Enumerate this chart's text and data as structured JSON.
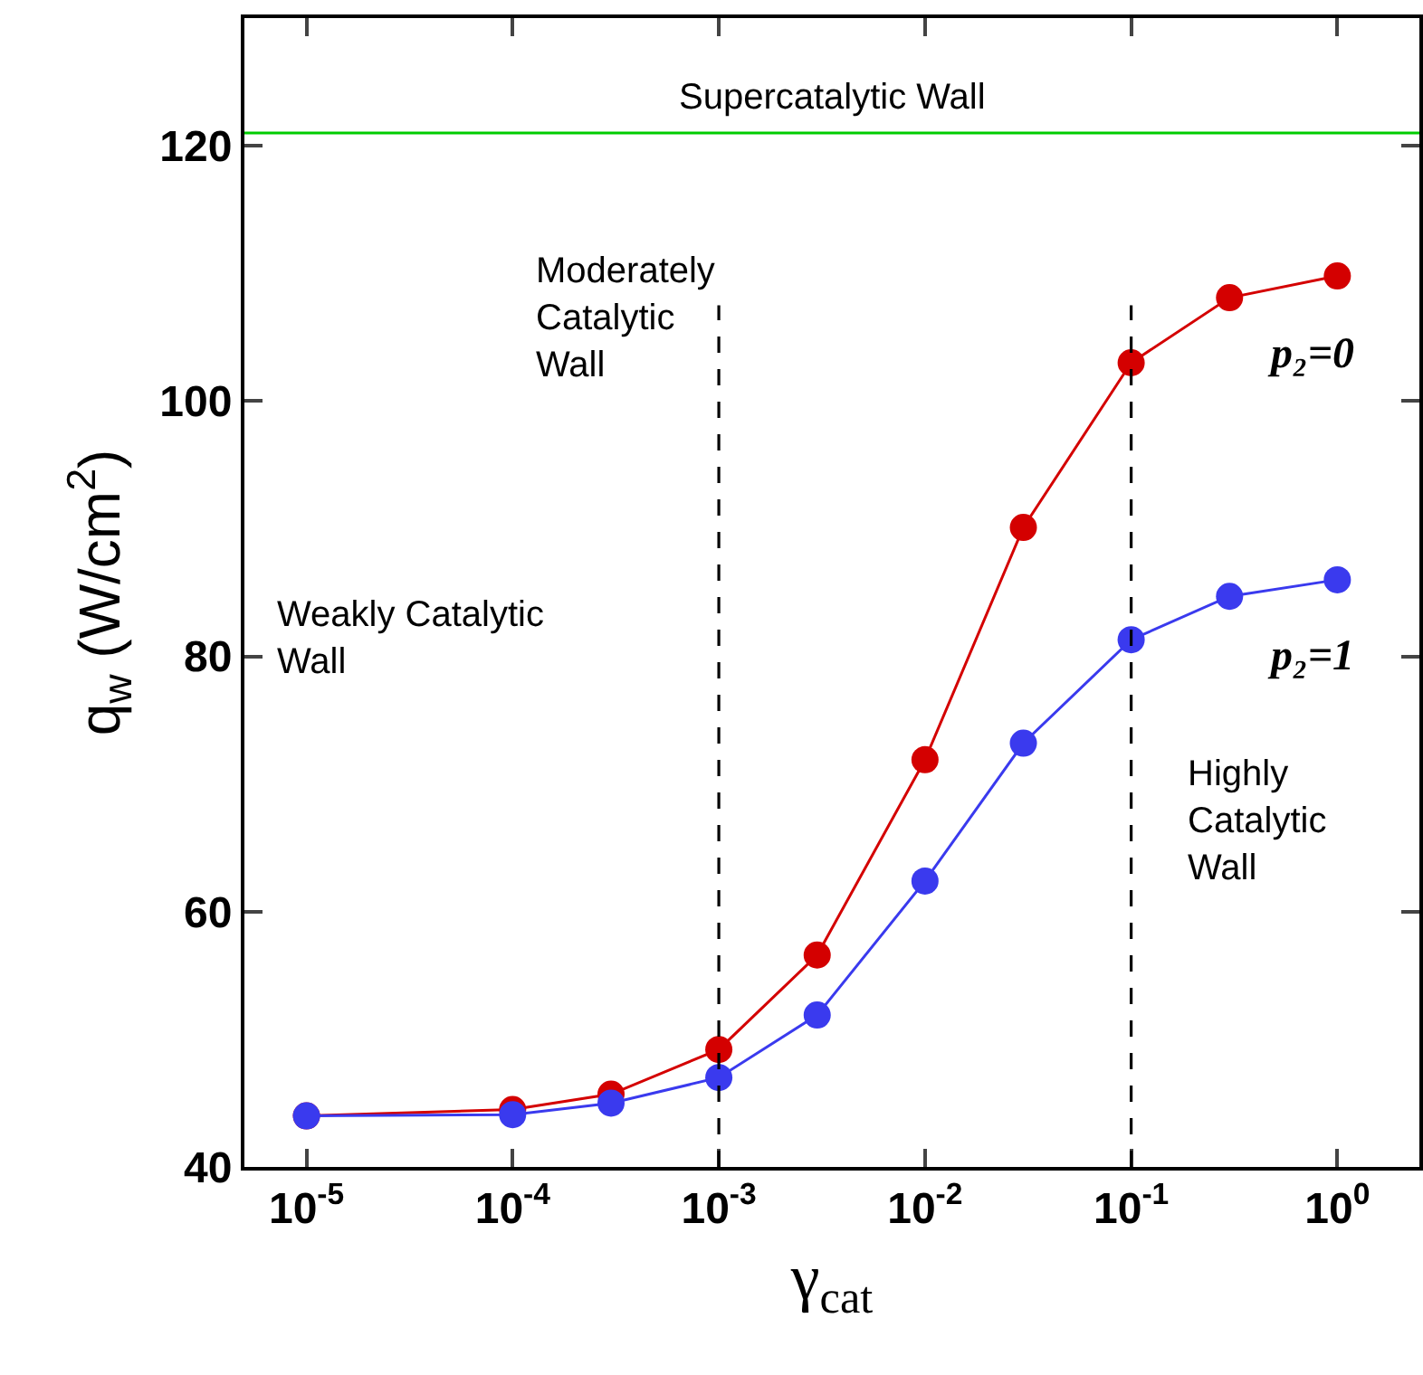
{
  "chart_data": {
    "type": "line",
    "xlabel": "γ$_{cat}$",
    "ylabel": "q$_{w}$ (W/cm$^{2}$)",
    "x": [
      1e-05,
      0.0001,
      0.0003,
      0.001,
      0.003,
      0.01,
      0.03,
      0.1,
      0.3,
      1
    ],
    "series": [
      {
        "name": "p₂=0",
        "color": "#d40000",
        "values": [
          44.0,
          44.5,
          45.7,
          49.2,
          56.6,
          71.9,
          90.1,
          103,
          108.1,
          109.8
        ]
      },
      {
        "name": "p₂=1",
        "color": "#3a3aee",
        "values": [
          44.0,
          44.1,
          45.0,
          47.0,
          51.9,
          62.4,
          73.2,
          81.3,
          84.7,
          86.0
        ]
      }
    ],
    "log": "x",
    "xlim": [
      5e-06,
      2.5
    ],
    "ylim": [
      40,
      130
    ],
    "xticks": [
      {
        "value": 1e-05,
        "label": "10$^{-5}$"
      },
      {
        "value": 0.0001,
        "label": "10$^{-4}$"
      },
      {
        "value": 0.001,
        "label": "10$^{-3}$"
      },
      {
        "value": 0.01,
        "label": "10$^{-2}$"
      },
      {
        "value": 0.1,
        "label": "10$^{-1}$"
      },
      {
        "value": 1,
        "label": "10$^{0}$"
      }
    ],
    "yticks": [
      40,
      60,
      80,
      100,
      120
    ],
    "ref_lines": [
      {
        "axis": "y",
        "value": 121,
        "label": "Supercatalytic Wall",
        "color": "#00cc00",
        "line_style": "solid"
      },
      {
        "axis": "x",
        "value": 0.001,
        "color": "#000000",
        "line_style": "dashed"
      },
      {
        "axis": "x",
        "value": 0.1,
        "color": "#000000",
        "line_style": "dashed"
      }
    ],
    "annotations": [
      "Weakly Catalytic\nWall",
      "Moderately\nCatalytic\nWall",
      "Highly\nCatalytic\nWall"
    ],
    "marker": "circle",
    "line_style": "solid",
    "grid": false,
    "legend": false
  }
}
